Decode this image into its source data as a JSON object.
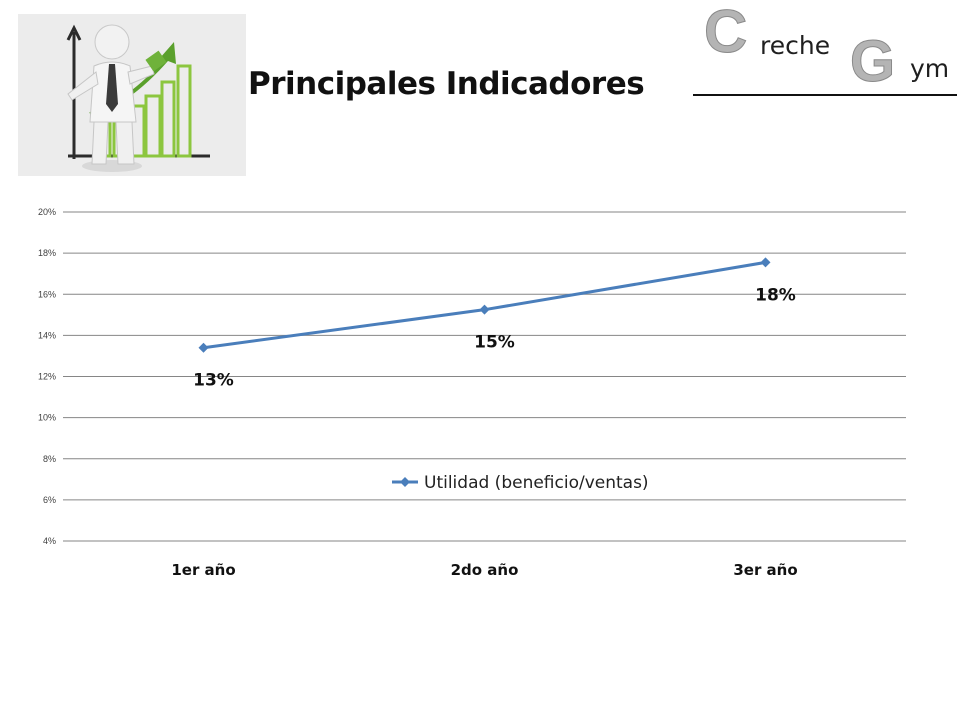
{
  "slide": {
    "title": "Principales Indicadores"
  },
  "logo": {
    "big_c": "C",
    "word1": "reche",
    "big_g": "G",
    "word2": "ym"
  },
  "illustration": {
    "icon": "businessman-growth-chart-icon"
  },
  "colors": {
    "series": "#4a7ebb",
    "grid": "#868686",
    "logo_letter": "#b4b4b4"
  },
  "chart_data": {
    "type": "line",
    "categories": [
      "1er año",
      "2do año",
      "3er año"
    ],
    "series": [
      {
        "name": "Utilidad (beneficio/ventas)",
        "values": [
          0.134,
          0.1525,
          0.1755
        ],
        "labels": [
          "13%",
          "15%",
          "18%"
        ],
        "marker": "diamond"
      }
    ],
    "y_ticks": [
      "4%",
      "6%",
      "8%",
      "10%",
      "12%",
      "14%",
      "16%",
      "18%",
      "20%"
    ],
    "ylim": [
      0.04,
      0.2
    ],
    "grid": true,
    "legend_position": "inside-center"
  }
}
